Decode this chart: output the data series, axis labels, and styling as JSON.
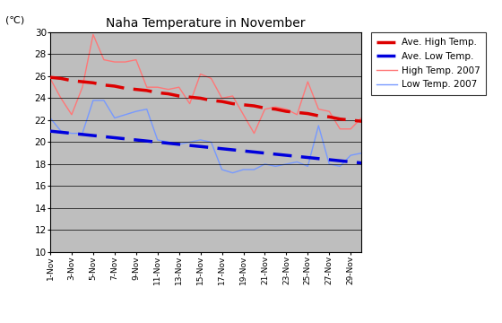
{
  "title": "Naha Temperature in November",
  "ylabel": "(℃)",
  "ylim": [
    10,
    30
  ],
  "yticks": [
    10,
    12,
    14,
    16,
    18,
    20,
    22,
    24,
    26,
    28,
    30
  ],
  "background_color": "#bebebe",
  "days": [
    1,
    2,
    3,
    4,
    5,
    6,
    7,
    8,
    9,
    10,
    11,
    12,
    13,
    14,
    15,
    16,
    17,
    18,
    19,
    20,
    21,
    22,
    23,
    24,
    25,
    26,
    27,
    28,
    29,
    30
  ],
  "xtick_labels": [
    "1-Nov",
    "3-Nov",
    "5-Nov",
    "7-Nov",
    "9-Nov",
    "11-Nov",
    "13-Nov",
    "15-Nov",
    "17-Nov",
    "19-Nov",
    "21-Nov",
    "23-Nov",
    "25-Nov",
    "27-Nov",
    "29-Nov"
  ],
  "xtick_positions": [
    1,
    3,
    5,
    7,
    9,
    11,
    13,
    15,
    17,
    19,
    21,
    23,
    25,
    27,
    29
  ],
  "ave_high": [
    25.9,
    25.8,
    25.6,
    25.5,
    25.4,
    25.2,
    25.1,
    24.9,
    24.8,
    24.7,
    24.5,
    24.4,
    24.2,
    24.1,
    24.0,
    23.8,
    23.7,
    23.5,
    23.4,
    23.3,
    23.1,
    23.0,
    22.8,
    22.7,
    22.6,
    22.4,
    22.3,
    22.1,
    22.0,
    21.9
  ],
  "ave_low": [
    21.0,
    20.9,
    20.8,
    20.7,
    20.6,
    20.5,
    20.4,
    20.3,
    20.2,
    20.1,
    20.0,
    19.9,
    19.8,
    19.7,
    19.6,
    19.5,
    19.4,
    19.3,
    19.2,
    19.1,
    19.0,
    18.9,
    18.8,
    18.7,
    18.6,
    18.5,
    18.4,
    18.3,
    18.2,
    18.1
  ],
  "high_2007": [
    25.8,
    24.0,
    22.5,
    25.0,
    29.8,
    27.5,
    27.3,
    27.3,
    27.5,
    25.0,
    25.0,
    24.8,
    25.0,
    23.5,
    26.2,
    25.8,
    24.0,
    24.2,
    22.5,
    20.8,
    23.0,
    23.2,
    23.0,
    22.5,
    25.5,
    23.0,
    22.8,
    21.2,
    21.2,
    22.2
  ],
  "low_2007": [
    22.2,
    21.0,
    20.8,
    20.8,
    23.8,
    23.8,
    22.2,
    22.5,
    22.8,
    23.0,
    20.2,
    20.0,
    19.8,
    20.0,
    20.2,
    20.0,
    17.5,
    17.2,
    17.5,
    17.5,
    18.0,
    17.8,
    18.0,
    18.2,
    17.8,
    21.5,
    18.0,
    17.8,
    18.8,
    19.0
  ],
  "ave_high_color": "#dd0000",
  "ave_low_color": "#0000dd",
  "high_2007_color": "#ff7777",
  "low_2007_color": "#7799ff",
  "ave_high_lw": 2.5,
  "ave_low_lw": 2.5,
  "data_lw": 1.0,
  "legend_labels": [
    "Ave. High Temp.",
    "Ave. Low Temp.",
    "High Temp. 2007",
    "Low Temp. 2007"
  ]
}
